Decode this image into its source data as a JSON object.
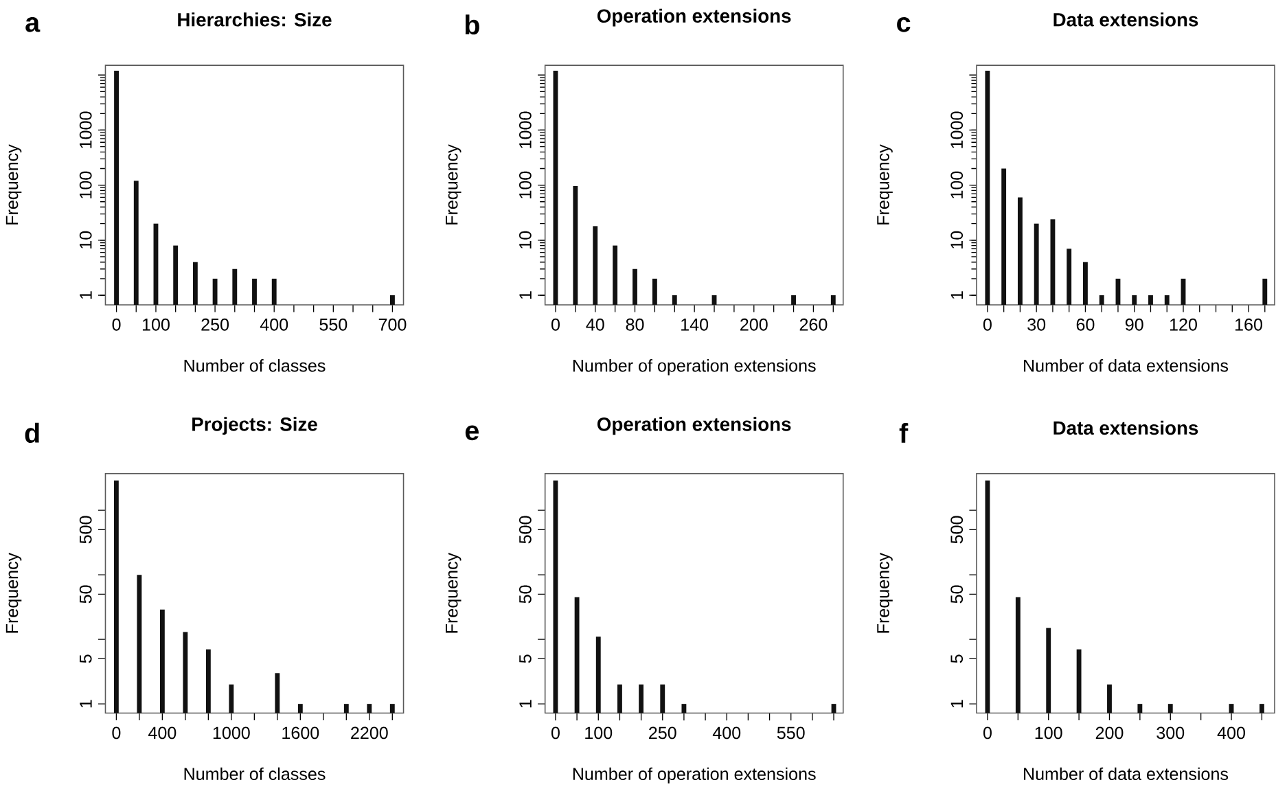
{
  "chart_data": [
    {
      "type": "bar",
      "title": "Hierarchies: Size",
      "xlabel": "Number of classes",
      "ylabel": "Frequency",
      "annotations": [
        "a"
      ],
      "log": true,
      "color": "#111111",
      "x": [
        0,
        50,
        100,
        150,
        200,
        250,
        300,
        350,
        400,
        700
      ],
      "values": [
        12000,
        120,
        20,
        8,
        4,
        2,
        3,
        2,
        2,
        1
      ],
      "xlim": [
        -28,
        728
      ],
      "ylim": [
        0.67,
        15000
      ],
      "xticks": [
        0,
        {
          "value": 50,
          "label": null
        },
        100,
        {
          "value": 150,
          "label": null
        },
        {
          "value": 200,
          "label": null
        },
        250,
        {
          "value": 300,
          "label": null
        },
        {
          "value": 350,
          "label": null
        },
        400,
        {
          "value": 450,
          "label": null
        },
        {
          "value": 500,
          "label": null
        },
        550,
        {
          "value": 600,
          "label": null
        },
        {
          "value": 650,
          "label": null
        },
        700
      ],
      "yticks": [
        1,
        10,
        100,
        1000,
        {
          "value": 10000,
          "label": null
        }
      ]
    },
    {
      "type": "bar",
      "title": "Operation extensions",
      "xlabel": "Number of operation extensions",
      "ylabel": "Frequency",
      "annotations": [
        "b"
      ],
      "log": true,
      "color": "#111111",
      "x": [
        0,
        20,
        40,
        60,
        80,
        100,
        120,
        160,
        240,
        280
      ],
      "values": [
        12000,
        96,
        18,
        8,
        3,
        2,
        1,
        1,
        1,
        1
      ],
      "xlim": [
        -10.6,
        290
      ],
      "ylim": [
        0.67,
        15000
      ],
      "xticks": [
        0,
        {
          "value": 20,
          "label": null
        },
        40,
        {
          "value": 60,
          "label": null
        },
        80,
        {
          "value": 100,
          "label": null
        },
        {
          "value": 120,
          "label": null
        },
        140,
        {
          "value": 160,
          "label": null
        },
        {
          "value": 180,
          "label": null
        },
        200,
        {
          "value": 220,
          "label": null
        },
        {
          "value": 240,
          "label": null
        },
        260,
        {
          "value": 280,
          "label": null
        }
      ],
      "yticks": [
        1,
        10,
        100,
        1000,
        {
          "value": 10000,
          "label": null
        }
      ]
    },
    {
      "type": "bar",
      "title": "Data extensions",
      "xlabel": "Number of data extensions",
      "ylabel": "Frequency",
      "annotations": [
        "c"
      ],
      "log": true,
      "color": "#111111",
      "x": [
        0,
        10,
        20,
        30,
        40,
        50,
        60,
        70,
        80,
        90,
        100,
        110,
        120,
        170
      ],
      "values": [
        12000,
        200,
        60,
        20,
        24,
        7,
        4,
        1,
        2,
        1,
        1,
        1,
        2,
        2
      ],
      "xlim": [
        -6.7,
        176
      ],
      "ylim": [
        0.67,
        15000
      ],
      "xticks": [
        0,
        {
          "value": 10,
          "label": null
        },
        {
          "value": 20,
          "label": null
        },
        30,
        {
          "value": 40,
          "label": null
        },
        {
          "value": 50,
          "label": null
        },
        60,
        {
          "value": 70,
          "label": null
        },
        {
          "value": 80,
          "label": null
        },
        90,
        {
          "value": 100,
          "label": null
        },
        {
          "value": 110,
          "label": null
        },
        120,
        {
          "value": 130,
          "label": null
        },
        {
          "value": 140,
          "label": null
        },
        {
          "value": 150,
          "label": null
        },
        160,
        {
          "value": 170,
          "label": null
        }
      ],
      "yticks": [
        1,
        10,
        100,
        1000,
        {
          "value": 10000,
          "label": null
        }
      ]
    },
    {
      "type": "bar",
      "title": "Projects: Size",
      "xlabel": "Number of classes",
      "ylabel": "Frequency",
      "annotations": [
        "d"
      ],
      "log": true,
      "color": "#111111",
      "x": [
        0,
        200,
        400,
        600,
        800,
        1000,
        1400,
        1600,
        2000,
        2200,
        2400
      ],
      "values": [
        2900,
        100,
        29,
        13,
        7,
        2,
        3,
        1,
        1,
        1,
        1
      ],
      "xlim": [
        -95,
        2497
      ],
      "ylim": [
        0.72,
        3700
      ],
      "xticks": [
        0,
        {
          "value": 200,
          "label": null
        },
        400,
        {
          "value": 600,
          "label": null
        },
        {
          "value": 800,
          "label": null
        },
        1000,
        {
          "value": 1200,
          "label": null
        },
        {
          "value": 1400,
          "label": null
        },
        1600,
        {
          "value": 1800,
          "label": null
        },
        {
          "value": 2000,
          "label": null
        },
        2200,
        {
          "value": 2400,
          "label": null
        }
      ],
      "yticks": [
        1,
        5,
        {
          "value": 10,
          "label": null
        },
        50,
        {
          "value": 100,
          "label": null
        },
        500,
        {
          "value": 1000,
          "label": null
        }
      ]
    },
    {
      "type": "bar",
      "title": "Operation extensions",
      "xlabel": "Number of operation extensions",
      "ylabel": "Frequency",
      "annotations": [
        "e"
      ],
      "log": true,
      "color": "#111111",
      "x": [
        0,
        50,
        100,
        150,
        200,
        250,
        300,
        650
      ],
      "values": [
        2900,
        45,
        11,
        2,
        2,
        2,
        1,
        1
      ],
      "xlim": [
        -24.5,
        672
      ],
      "ylim": [
        0.72,
        3700
      ],
      "xticks": [
        0,
        {
          "value": 50,
          "label": null
        },
        100,
        {
          "value": 150,
          "label": null
        },
        {
          "value": 200,
          "label": null
        },
        250,
        {
          "value": 300,
          "label": null
        },
        {
          "value": 350,
          "label": null
        },
        400,
        {
          "value": 450,
          "label": null
        },
        {
          "value": 500,
          "label": null
        },
        550,
        {
          "value": 600,
          "label": null
        },
        {
          "value": 650,
          "label": null
        }
      ],
      "yticks": [
        1,
        5,
        {
          "value": 10,
          "label": null
        },
        50,
        {
          "value": 100,
          "label": null
        },
        500,
        {
          "value": 1000,
          "label": null
        }
      ]
    },
    {
      "type": "bar",
      "title": "Data extensions",
      "xlabel": "Number of data extensions",
      "ylabel": "Frequency",
      "annotations": [
        "f"
      ],
      "log": true,
      "color": "#111111",
      "x": [
        0,
        50,
        100,
        150,
        200,
        250,
        300,
        400,
        450
      ],
      "values": [
        2900,
        45,
        15,
        7,
        2,
        1,
        1,
        1,
        1
      ],
      "xlim": [
        -18,
        471
      ],
      "ylim": [
        0.72,
        3700
      ],
      "xticks": [
        0,
        {
          "value": 50,
          "label": null
        },
        100,
        {
          "value": 150,
          "label": null
        },
        200,
        {
          "value": 250,
          "label": null
        },
        300,
        {
          "value": 350,
          "label": null
        },
        400,
        {
          "value": 450,
          "label": null
        }
      ],
      "yticks": [
        1,
        5,
        {
          "value": 10,
          "label": null
        },
        50,
        {
          "value": 100,
          "label": null
        },
        500,
        {
          "value": 1000,
          "label": null
        }
      ]
    }
  ]
}
